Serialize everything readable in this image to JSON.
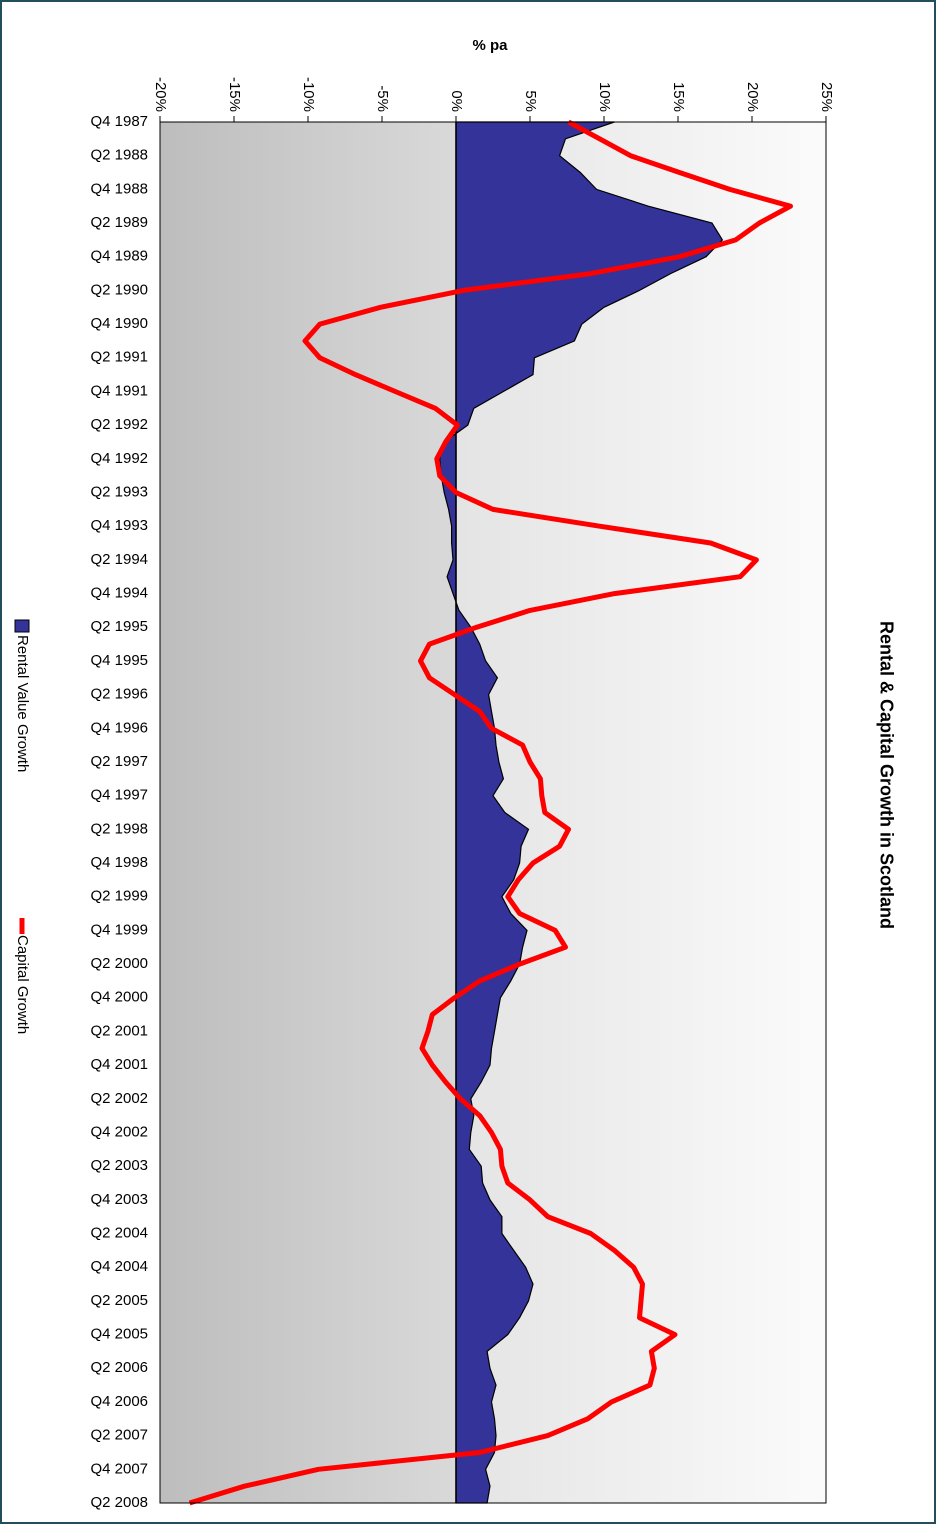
{
  "chart_data": {
    "type": "area-line",
    "title": "Rental & Capital Growth in Scotland",
    "x_label": "% pa",
    "categories": [
      "Q4 1987",
      null,
      "Q2 1988",
      null,
      "Q4 1988",
      null,
      "Q2 1989",
      null,
      "Q4 1989",
      null,
      "Q2 1990",
      null,
      "Q4 1990",
      null,
      "Q2 1991",
      null,
      "Q4 1991",
      null,
      "Q2 1992",
      null,
      "Q4 1992",
      null,
      "Q2 1993",
      null,
      "Q4 1993",
      null,
      "Q2 1994",
      null,
      "Q4 1994",
      null,
      "Q2 1995",
      null,
      "Q4 1995",
      null,
      "Q2 1996",
      null,
      "Q4 1996",
      null,
      "Q2 1997",
      null,
      "Q4 1997",
      null,
      "Q2 1998",
      null,
      "Q4 1998",
      null,
      "Q2 1999",
      null,
      "Q4 1999",
      null,
      "Q2 2000",
      null,
      "Q4 2000",
      null,
      "Q2 2001",
      null,
      "Q4 2001",
      null,
      "Q2 2002",
      null,
      "Q4 2002",
      null,
      "Q2 2003",
      null,
      "Q4 2003",
      null,
      "Q2 2004",
      null,
      "Q4 2004",
      null,
      "Q2 2005",
      null,
      "Q4 2005",
      null,
      "Q2 2006",
      null,
      "Q4 2006",
      null,
      "Q2 2007",
      null,
      "Q4 2007",
      null,
      "Q2 2008"
    ],
    "series": [
      {
        "name": "Rental Value Growth",
        "color": "#333399",
        "mark": "area",
        "values": [
          10.7,
          7.4,
          7.0,
          8.4,
          9.5,
          13.0,
          17.3,
          18.0,
          16.9,
          14.5,
          12.4,
          10.0,
          8.5,
          8.0,
          5.3,
          5.2,
          3.2,
          1.2,
          0.8,
          -0.8,
          -1.1,
          -1.0,
          -0.8,
          -0.5,
          -0.3,
          -0.3,
          -0.2,
          -0.6,
          -0.2,
          0.2,
          1.0,
          1.6,
          2.0,
          2.8,
          2.2,
          2.4,
          2.6,
          2.7,
          2.9,
          3.2,
          2.5,
          3.3,
          4.9,
          4.4,
          4.3,
          3.9,
          3.1,
          3.7,
          4.8,
          4.5,
          4.3,
          3.7,
          3.0,
          2.8,
          2.6,
          2.4,
          2.3,
          1.7,
          1.0,
          1.2,
          1.0,
          0.9,
          1.7,
          1.8,
          2.3,
          3.1,
          3.1,
          3.9,
          4.7,
          5.2,
          4.9,
          4.3,
          3.5,
          2.1,
          2.3,
          2.7,
          2.4,
          2.6,
          2.7,
          2.6,
          2.0,
          2.3,
          2.1
        ]
      },
      {
        "name": "Capital Growth",
        "color": "#ff0000",
        "mark": "line",
        "values": [
          7.6,
          9.7,
          11.8,
          15.1,
          18.5,
          22.6,
          20.5,
          18.9,
          15.1,
          9.1,
          0.5,
          -5.1,
          -9.2,
          -10.2,
          -9.2,
          -6.8,
          -4.1,
          -1.4,
          0.1,
          -0.7,
          -1.3,
          -1.1,
          0.0,
          2.5,
          9.7,
          17.2,
          20.3,
          19.2,
          10.7,
          5.0,
          1.4,
          -1.8,
          -2.4,
          -1.8,
          -0.1,
          1.6,
          2.4,
          4.5,
          5.0,
          5.7,
          5.8,
          6.0,
          7.6,
          7.0,
          5.2,
          4.2,
          3.5,
          4.3,
          6.7,
          7.4,
          4.3,
          1.6,
          -0.1,
          -1.6,
          -1.9,
          -2.3,
          -1.6,
          -0.7,
          0.3,
          1.6,
          2.4,
          3.0,
          3.1,
          3.5,
          5.0,
          6.2,
          9.1,
          10.7,
          12.0,
          12.6,
          12.5,
          12.4,
          14.8,
          13.2,
          13.4,
          13.1,
          10.5,
          8.9,
          6.2,
          1.6,
          -9.3,
          -14.3,
          -18.0
        ]
      }
    ],
    "xlim": [
      -20,
      25
    ],
    "xticks": [
      {
        "value": -20,
        "label": "-20%"
      },
      {
        "value": -15,
        "label": "-15%"
      },
      {
        "value": -10,
        "label": "-10%"
      },
      {
        "value": -5,
        "label": "-5%"
      },
      {
        "value": 0,
        "label": "0%"
      },
      {
        "value": 5,
        "label": "5%"
      },
      {
        "value": 10,
        "label": "10%"
      },
      {
        "value": 15,
        "label": "15%"
      },
      {
        "value": 20,
        "label": "20%"
      },
      {
        "value": 25,
        "label": "25%"
      }
    ],
    "grid": false
  }
}
